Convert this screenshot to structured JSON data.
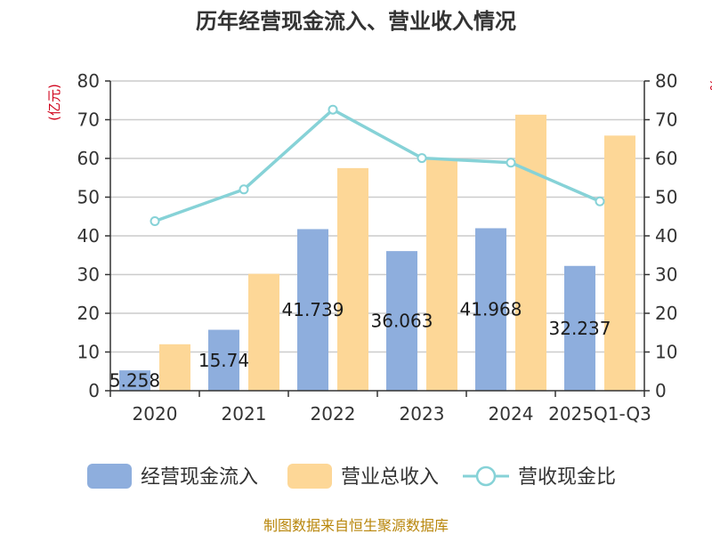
{
  "chart_data": {
    "type": "bar",
    "title": "历年经营现金流入、营业收入情况",
    "categories": [
      "2020",
      "2021",
      "2022",
      "2023",
      "2024",
      "2025Q1-Q3"
    ],
    "series": [
      {
        "name": "经营现金流入",
        "kind": "bar",
        "color": "#8eaedd",
        "values": [
          5.258,
          15.74,
          41.739,
          36.063,
          41.968,
          32.237
        ]
      },
      {
        "name": "营业总收入",
        "kind": "bar",
        "color": "#fdd797",
        "values": [
          12.0,
          30.2,
          57.5,
          60.0,
          71.3,
          65.9
        ]
      },
      {
        "name": "营收现金比",
        "kind": "line",
        "color": "#86d2d7",
        "values": [
          43.8,
          52.0,
          72.6,
          60.1,
          58.9,
          48.9
        ]
      }
    ],
    "data_labels": [
      "5.258",
      "15.74",
      "41.739",
      "36.063",
      "41.968",
      "32.237"
    ],
    "y_left": {
      "label": "(亿元)",
      "min": 0,
      "max": 80,
      "ticks": [
        "0",
        "10",
        "20",
        "30",
        "40",
        "50",
        "60",
        "70",
        "80"
      ]
    },
    "y_right": {
      "label": "%",
      "min": 0,
      "max": 80,
      "ticks": [
        "0",
        "10",
        "20",
        "30",
        "40",
        "50",
        "60",
        "70",
        "80"
      ]
    },
    "grid": true,
    "legend": "bottom"
  },
  "footer": {
    "source_text": "制图数据来自恒生聚源数据库"
  },
  "colors": {
    "axis": "#333333",
    "grid": "#cccccc",
    "unit_label": "#d0021b",
    "footer": "#b8860b"
  }
}
